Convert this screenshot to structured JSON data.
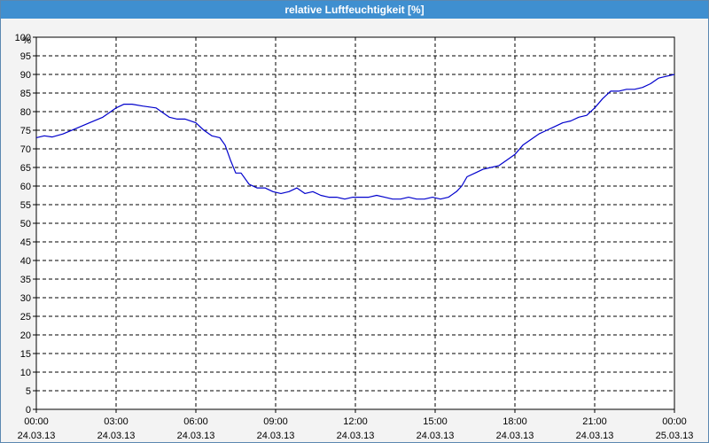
{
  "window": {
    "title": "relative Luftfeuchtigkeit [%]"
  },
  "colors": {
    "titlebar": "#3f8fd0",
    "line": "#0000cc",
    "grid": "#000000",
    "background": "#f3f3f3"
  },
  "chart_data": {
    "type": "line",
    "title": "relative Luftfeuchtigkeit [%]",
    "ylabel": "%",
    "xlabel": "",
    "ylim": [
      0,
      100
    ],
    "xlim": [
      "00:00",
      "24:00"
    ],
    "y_ticks": [
      0,
      5,
      10,
      15,
      20,
      25,
      30,
      35,
      40,
      45,
      50,
      55,
      60,
      65,
      70,
      75,
      80,
      85,
      90,
      95,
      100
    ],
    "x_ticks": [
      {
        "time": "00:00",
        "date": "24.03.13",
        "hour": 0
      },
      {
        "time": "03:00",
        "date": "24.03.13",
        "hour": 3
      },
      {
        "time": "06:00",
        "date": "24.03.13",
        "hour": 6
      },
      {
        "time": "09:00",
        "date": "24.03.13",
        "hour": 9
      },
      {
        "time": "12:00",
        "date": "24.03.13",
        "hour": 12
      },
      {
        "time": "15:00",
        "date": "24.03.13",
        "hour": 15
      },
      {
        "time": "18:00",
        "date": "24.03.13",
        "hour": 18
      },
      {
        "time": "21:00",
        "date": "24.03.13",
        "hour": 21
      },
      {
        "time": "00:00",
        "date": "25.03.13",
        "hour": 24
      }
    ],
    "grid": true,
    "series": [
      {
        "color": "#0000cc",
        "x": [
          0,
          0.3,
          0.6,
          1.0,
          1.5,
          2.0,
          2.5,
          2.8,
          3.0,
          3.3,
          3.6,
          4.0,
          4.5,
          5.0,
          5.3,
          5.6,
          6.0,
          6.3,
          6.6,
          6.9,
          7.1,
          7.3,
          7.5,
          7.7,
          8.0,
          8.3,
          8.6,
          8.9,
          9.2,
          9.5,
          9.8,
          10.1,
          10.4,
          10.7,
          11.0,
          11.3,
          11.6,
          11.9,
          12.2,
          12.5,
          12.8,
          13.1,
          13.4,
          13.7,
          14.0,
          14.3,
          14.6,
          14.9,
          15.2,
          15.5,
          15.8,
          16.0,
          16.2,
          16.5,
          16.8,
          17.1,
          17.4,
          17.7,
          18.0,
          18.3,
          18.6,
          18.9,
          19.2,
          19.5,
          19.8,
          20.1,
          20.4,
          20.7,
          21.0,
          21.3,
          21.6,
          21.9,
          22.2,
          22.5,
          22.8,
          23.1,
          23.4,
          23.7,
          24.0
        ],
        "y": [
          73,
          73.5,
          73.2,
          74,
          75.5,
          77,
          78.5,
          80,
          81,
          82,
          82,
          81.5,
          81,
          78.5,
          78,
          78,
          77,
          75,
          73.5,
          73,
          71,
          67,
          63.5,
          63.5,
          60.5,
          59.5,
          59.5,
          58.5,
          58,
          58.5,
          59.5,
          58,
          58.5,
          57.5,
          57,
          57,
          56.5,
          57,
          57,
          57,
          57.5,
          57,
          56.5,
          56.5,
          57,
          56.5,
          56.5,
          57,
          56.5,
          57,
          58.5,
          60,
          62.5,
          63.5,
          64.5,
          65,
          65.5,
          67,
          68.5,
          71,
          72.5,
          74,
          75,
          76,
          77,
          77.5,
          78.5,
          79,
          81,
          83.5,
          85.5,
          85.5,
          86,
          86,
          86.5,
          87.5,
          89,
          89.5,
          90
        ]
      }
    ]
  }
}
